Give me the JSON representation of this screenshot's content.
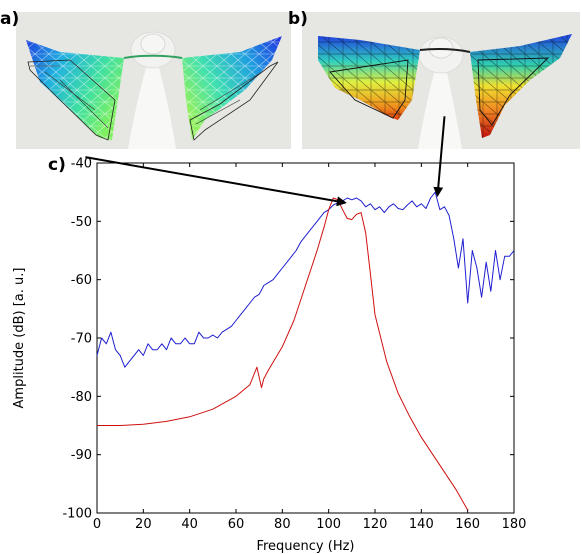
{
  "panels": {
    "a": {
      "label": "a)"
    },
    "b": {
      "label": "b)"
    },
    "c": {
      "label": "c)"
    }
  },
  "colors": {
    "blue": "#1f1fd0",
    "red": "#d01010",
    "arrow": "#000000",
    "panel_bg": "#e6e6e2"
  },
  "chart_data": {
    "type": "line",
    "title": "",
    "xlabel": "Frequency (Hz)",
    "ylabel": "Amplitude (dB) [a. u.]",
    "xlim": [
      0,
      180
    ],
    "ylim": [
      -100,
      -40
    ],
    "xticks": [
      0,
      20,
      40,
      60,
      80,
      100,
      120,
      140,
      160,
      180
    ],
    "yticks": [
      -40,
      -50,
      -60,
      -70,
      -80,
      -90,
      -100
    ],
    "grid": false,
    "series": [
      {
        "color": "#1f1fd0",
        "x": [
          0,
          2,
          4,
          6,
          8,
          10,
          12,
          14,
          16,
          18,
          20,
          22,
          24,
          26,
          28,
          30,
          32,
          34,
          36,
          38,
          40,
          42,
          44,
          46,
          48,
          50,
          52,
          54,
          56,
          58,
          60,
          62,
          64,
          66,
          68,
          70,
          72,
          74,
          76,
          78,
          80,
          82,
          84,
          86,
          88,
          90,
          92,
          94,
          96,
          98,
          100,
          102,
          104,
          106,
          108,
          110,
          112,
          114,
          116,
          118,
          120,
          122,
          124,
          126,
          128,
          130,
          132,
          134,
          136,
          138,
          140,
          142,
          144,
          146,
          148,
          150,
          152,
          154,
          156,
          158,
          160,
          162,
          164,
          166,
          168,
          170,
          172,
          174,
          176,
          178,
          180
        ],
        "y": [
          -73,
          -70,
          -71,
          -69,
          -72,
          -73,
          -75,
          -74,
          -73,
          -72,
          -73,
          -71,
          -72,
          -72,
          -71,
          -72,
          -70,
          -71,
          -71,
          -70,
          -71,
          -71,
          -69,
          -70,
          -70,
          -69.5,
          -70,
          -69,
          -68.5,
          -68,
          -67,
          -66,
          -65,
          -64,
          -63,
          -62.5,
          -61,
          -60.5,
          -60,
          -59,
          -58,
          -57,
          -56,
          -55,
          -53.5,
          -52.5,
          -51.5,
          -50.5,
          -49.5,
          -48.5,
          -48,
          -47.2,
          -46.8,
          -46.5,
          -46,
          -46.3,
          -46,
          -46.5,
          -47.5,
          -47,
          -48,
          -47.5,
          -48.5,
          -47.5,
          -47,
          -47.8,
          -48,
          -47.2,
          -46.5,
          -47.5,
          -47,
          -47.8,
          -46,
          -45,
          -48,
          -47.5,
          -49,
          -53,
          -58,
          -53,
          -64,
          -55,
          -58,
          -63,
          -57,
          -62,
          -55,
          -60,
          -56,
          -56,
          -55
        ]
      },
      {
        "color": "#d01010",
        "x": [
          0,
          10,
          20,
          30,
          40,
          50,
          60,
          66,
          69,
          71,
          72,
          74,
          80,
          85,
          90,
          95,
          98,
          100,
          102,
          104,
          106,
          108,
          110,
          112,
          114,
          116,
          118,
          120,
          125,
          130,
          135,
          140,
          145,
          150,
          155,
          160
        ],
        "y": [
          -85,
          -85,
          -84.8,
          -84.3,
          -83.5,
          -82.2,
          -80,
          -78,
          -75,
          -78.5,
          -77,
          -75.5,
          -71.5,
          -67,
          -61,
          -55,
          -51,
          -48,
          -46,
          -46.3,
          -48,
          -49.5,
          -49.7,
          -48.8,
          -48.5,
          -52,
          -59,
          -66,
          -74,
          -79.5,
          -83.5,
          -87,
          -90,
          -93,
          -96,
          -99.5
        ]
      }
    ],
    "arrows": [
      {
        "from": [
          -5,
          -39
        ],
        "to": [
          107,
          -46.8
        ]
      },
      {
        "from": [
          150,
          -32
        ],
        "to": [
          147,
          -45.5
        ]
      }
    ]
  }
}
